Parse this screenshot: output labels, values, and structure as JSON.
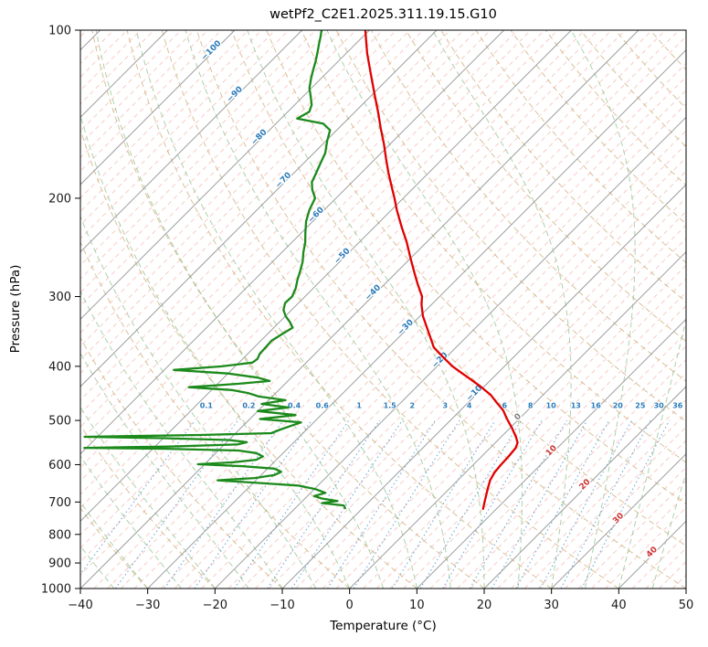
{
  "chart_data": {
    "type": "line",
    "projection": "skew-t-log-p",
    "title": "wetPf2_C2E1.2025.311.19.15.G10",
    "xlabel": "Temperature (°C)",
    "ylabel": "Pressure (hPa)",
    "xlim": [
      -40,
      50
    ],
    "pressure_top_hpa": 100,
    "pressure_bottom_hpa": 1000,
    "x_ticks": [
      -40,
      -30,
      -20,
      -10,
      0,
      10,
      20,
      30,
      40,
      50
    ],
    "y_ticks": [
      100,
      200,
      300,
      400,
      500,
      600,
      700,
      800,
      900,
      1000
    ],
    "grid": "on",
    "legend": "none",
    "style": {
      "isotherm_major_color": "#9e9e9e",
      "isotherm_minor_color": "#f0988b",
      "dry_adiabat_color": "#c9a66b",
      "moist_adiabat_color": "#86bf86",
      "mixing_line_color": "#3f8fce",
      "axis_color": "#000000",
      "tick_label_color": "#1a1a1a"
    },
    "isotherms": {
      "start_c": -130,
      "end_c": 48,
      "major_step_c": 10,
      "minor_step_c": 2
    },
    "dry_adiabats": {
      "theta_start_c": -40,
      "theta_end_c": 200,
      "step_c": 10
    },
    "moist_adiabats": {
      "t0_start_c": -40,
      "t0_end_c": 45,
      "step_c": 5
    },
    "mixing_ratio": {
      "values_g_kg": [
        0.1,
        0.2,
        0.4,
        0.6,
        1,
        1.5,
        2,
        3,
        4,
        6,
        8,
        10,
        13,
        16,
        20,
        25,
        30,
        36
      ],
      "label_color": "#2b7bba",
      "label_pressure_hpa": 470,
      "line_top_hpa": 500
    },
    "isotherm_inline_labels": {
      "unit": "°C",
      "colors": {
        "negative": "#2b7bba",
        "zero": "#808080",
        "positive": "#cc3333"
      },
      "items": [
        {
          "value": -100,
          "y": 57
        },
        {
          "value": -90,
          "y": 105
        },
        {
          "value": -80,
          "y": 152
        },
        {
          "value": -70,
          "y": 199
        },
        {
          "value": -60,
          "y": 237
        },
        {
          "value": -50,
          "y": 282
        },
        {
          "value": -40,
          "y": 322
        },
        {
          "value": -30,
          "y": 360
        },
        {
          "value": -20,
          "y": 396
        },
        {
          "value": -10,
          "y": 432
        },
        {
          "value": 0,
          "y": 458
        },
        {
          "value": 10,
          "y": 495
        },
        {
          "value": 20,
          "y": 532
        },
        {
          "value": 30,
          "y": 569
        },
        {
          "value": 40,
          "y": 606
        }
      ]
    },
    "series": [
      {
        "name": "Temperature",
        "color": "#e00000",
        "points_p_t": [
          [
            720,
            8.0
          ],
          [
            700,
            7.2
          ],
          [
            660,
            5.6
          ],
          [
            640,
            4.8
          ],
          [
            620,
            4.3
          ],
          [
            600,
            4.1
          ],
          [
            580,
            4.0
          ],
          [
            560,
            3.8
          ],
          [
            548,
            3.3
          ],
          [
            535,
            2.2
          ],
          [
            525,
            1.2
          ],
          [
            515,
            0.2
          ],
          [
            505,
            -0.9
          ],
          [
            495,
            -2.0
          ],
          [
            480,
            -3.6
          ],
          [
            465,
            -5.7
          ],
          [
            450,
            -7.8
          ],
          [
            435,
            -10.5
          ],
          [
            420,
            -13.5
          ],
          [
            410,
            -15.6
          ],
          [
            400,
            -17.7
          ],
          [
            385,
            -20.5
          ],
          [
            370,
            -23.3
          ],
          [
            355,
            -25.3
          ],
          [
            340,
            -27.4
          ],
          [
            325,
            -29.6
          ],
          [
            310,
            -31.5
          ],
          [
            300,
            -32.6
          ],
          [
            285,
            -35.1
          ],
          [
            270,
            -37.6
          ],
          [
            255,
            -40.2
          ],
          [
            240,
            -42.9
          ],
          [
            225,
            -46.0
          ],
          [
            210,
            -49.2
          ],
          [
            200,
            -51.3
          ],
          [
            190,
            -53.6
          ],
          [
            180,
            -56.0
          ],
          [
            170,
            -58.4
          ],
          [
            160,
            -60.9
          ],
          [
            150,
            -63.7
          ],
          [
            140,
            -66.6
          ],
          [
            130,
            -69.8
          ],
          [
            120,
            -73.2
          ],
          [
            110,
            -76.9
          ],
          [
            100,
            -80.6
          ]
        ]
      },
      {
        "name": "Dewpoint",
        "color": "#1b8a1b",
        "points_p_t": [
          [
            718,
            -12.6
          ],
          [
            710,
            -13.2
          ],
          [
            703,
            -16.8
          ],
          [
            697,
            -14.8
          ],
          [
            690,
            -17.5
          ],
          [
            683,
            -19.0
          ],
          [
            674,
            -17.8
          ],
          [
            664,
            -19.8
          ],
          [
            654,
            -23.0
          ],
          [
            646,
            -30.0
          ],
          [
            640,
            -35.7
          ],
          [
            634,
            -30.5
          ],
          [
            626,
            -28.0
          ],
          [
            618,
            -27.5
          ],
          [
            610,
            -29.0
          ],
          [
            604,
            -34.0
          ],
          [
            599,
            -41.0
          ],
          [
            594,
            -36.0
          ],
          [
            588,
            -33.0
          ],
          [
            580,
            -32.5
          ],
          [
            572,
            -34.0
          ],
          [
            566,
            -37.0
          ],
          [
            562,
            -48.0
          ],
          [
            560,
            -60.3
          ],
          [
            557,
            -48.0
          ],
          [
            552,
            -38.0
          ],
          [
            547,
            -37.0
          ],
          [
            542,
            -40.0
          ],
          [
            538,
            -50.0
          ],
          [
            535,
            -61.9
          ],
          [
            531,
            -45.0
          ],
          [
            527,
            -34.7
          ],
          [
            520,
            -34.0
          ],
          [
            512,
            -33.0
          ],
          [
            504,
            -31.9
          ],
          [
            497,
            -38.5
          ],
          [
            489,
            -33.8
          ],
          [
            481,
            -40.0
          ],
          [
            474,
            -36.0
          ],
          [
            467,
            -40.5
          ],
          [
            460,
            -37.5
          ],
          [
            453,
            -42.0
          ],
          [
            447,
            -44.0
          ],
          [
            441,
            -47.0
          ],
          [
            436,
            -53.8
          ],
          [
            430,
            -47.0
          ],
          [
            425,
            -42.7
          ],
          [
            419,
            -45.0
          ],
          [
            412,
            -50.0
          ],
          [
            406,
            -58.6
          ],
          [
            400,
            -52.0
          ],
          [
            394,
            -48.0
          ],
          [
            388,
            -47.8
          ],
          [
            380,
            -48.2
          ],
          [
            370,
            -48.3
          ],
          [
            360,
            -48.4
          ],
          [
            350,
            -47.8
          ],
          [
            341,
            -47.2
          ],
          [
            333,
            -48.5
          ],
          [
            325,
            -50.0
          ],
          [
            317,
            -51.2
          ],
          [
            308,
            -52.0
          ],
          [
            300,
            -51.9
          ],
          [
            290,
            -52.6
          ],
          [
            280,
            -53.6
          ],
          [
            270,
            -54.5
          ],
          [
            260,
            -55.5
          ],
          [
            250,
            -56.8
          ],
          [
            240,
            -58.0
          ],
          [
            230,
            -59.5
          ],
          [
            220,
            -61.0
          ],
          [
            210,
            -62.2
          ],
          [
            200,
            -63.1
          ],
          [
            193,
            -64.8
          ],
          [
            187,
            -66.0
          ],
          [
            181,
            -66.6
          ],
          [
            174,
            -67.4
          ],
          [
            166,
            -68.3
          ],
          [
            158,
            -69.8
          ],
          [
            151,
            -71.0
          ],
          [
            147,
            -73.0
          ],
          [
            144,
            -77.6
          ],
          [
            140,
            -76.8
          ],
          [
            136,
            -77.5
          ],
          [
            131,
            -79.0
          ],
          [
            127,
            -80.3
          ],
          [
            122,
            -81.5
          ],
          [
            118,
            -82.4
          ],
          [
            114,
            -83.3
          ],
          [
            110,
            -84.3
          ],
          [
            106,
            -85.4
          ],
          [
            103,
            -86.2
          ],
          [
            100,
            -87.1
          ]
        ]
      }
    ]
  }
}
